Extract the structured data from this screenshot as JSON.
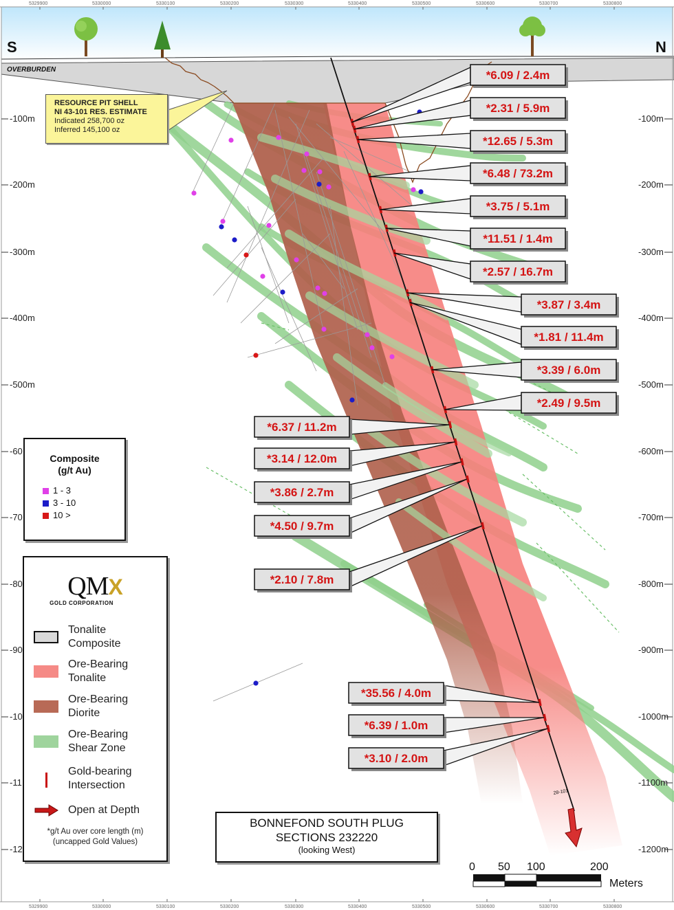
{
  "directions": {
    "south": "S",
    "north": "N"
  },
  "overburden_label": "OVERBURDEN",
  "pit_note": {
    "line1": "RESOURCE PIT SHELL",
    "line2": "NI 43-101 RES. ESTIMATE",
    "line3": "Indicated 258,700 oz",
    "line4": "Inferred 145,100 oz"
  },
  "depth_labels_right": [
    "-100m",
    "-200m",
    "-300m",
    "-400m",
    "-500m",
    "-600m",
    "-700m",
    "-800m",
    "-900m",
    "-1000m",
    "-1100m",
    "-1200m"
  ],
  "depth_labels_left": [
    "-100m",
    "-200m",
    "-300m",
    "-400m",
    "-500m",
    "-60",
    "-70",
    "-80",
    "-90",
    "-10",
    "-11",
    "-12"
  ],
  "coord_ticks": [
    "5329900",
    "5330000",
    "5330100",
    "5330200",
    "5330300",
    "5330400",
    "5330500",
    "5330600",
    "5330700",
    "5330800"
  ],
  "intersections": [
    {
      "text": "*6.09 / 2.4m"
    },
    {
      "text": "*2.31 / 5.9m"
    },
    {
      "text": "*12.65 / 5.3m"
    },
    {
      "text": "*6.48 / 73.2m"
    },
    {
      "text": "*3.75 / 5.1m"
    },
    {
      "text": "*11.51 / 1.4m"
    },
    {
      "text": "*2.57 / 16.7m"
    },
    {
      "text": "*3.87 / 3.4m"
    },
    {
      "text": "*1.81 / 11.4m"
    },
    {
      "text": "*3.39 / 6.0m"
    },
    {
      "text": "*2.49 / 9.5m"
    },
    {
      "text": "*6.37 / 11.2m"
    },
    {
      "text": "*3.14 / 12.0m"
    },
    {
      "text": "*3.86 / 2.7m"
    },
    {
      "text": "*4.50 / 9.7m"
    },
    {
      "text": "*2.10 / 7.8m"
    },
    {
      "text": "*35.56 / 4.0m"
    },
    {
      "text": "*6.39 / 1.0m"
    },
    {
      "text": "*3.10 / 2.0m"
    }
  ],
  "hole_id": "28-101",
  "composite_legend": {
    "title_line1": "Composite",
    "title_line2": "(g/t Au)",
    "items": [
      {
        "label": "1 - 3",
        "color": "#e040e8"
      },
      {
        "label": "3 - 10",
        "color": "#1c1cc8"
      },
      {
        "label": "10 >",
        "color": "#d81818"
      }
    ]
  },
  "legend": {
    "logo_main": "QM",
    "logo_x": "X",
    "logo_sub": "GOLD CORPORATION",
    "items": [
      {
        "label": "Tonalite\nComposite",
        "color": "#d9d9d9"
      },
      {
        "label": "Ore-Bearing\nTonalite",
        "color": "#f58a86"
      },
      {
        "label": "Ore-Bearing\nDiorite",
        "color": "#b86a56"
      },
      {
        "label": "Ore-Bearing\nShear Zone",
        "color": "#9fd49d"
      },
      {
        "label": "Gold-bearing\nIntersection",
        "color": "#c81010"
      },
      {
        "label": "Open at Depth",
        "color": "#c81818"
      }
    ],
    "note": "*g/t Au over core length (m)\n(uncapped Gold Values)"
  },
  "title_box": {
    "line1": "BONNEFOND SOUTH PLUG",
    "line2": "SECTIONS 232220",
    "line3": "(looking West)"
  },
  "scale": {
    "labels": [
      "0",
      "50",
      "100",
      "200"
    ],
    "unit": "Meters"
  }
}
